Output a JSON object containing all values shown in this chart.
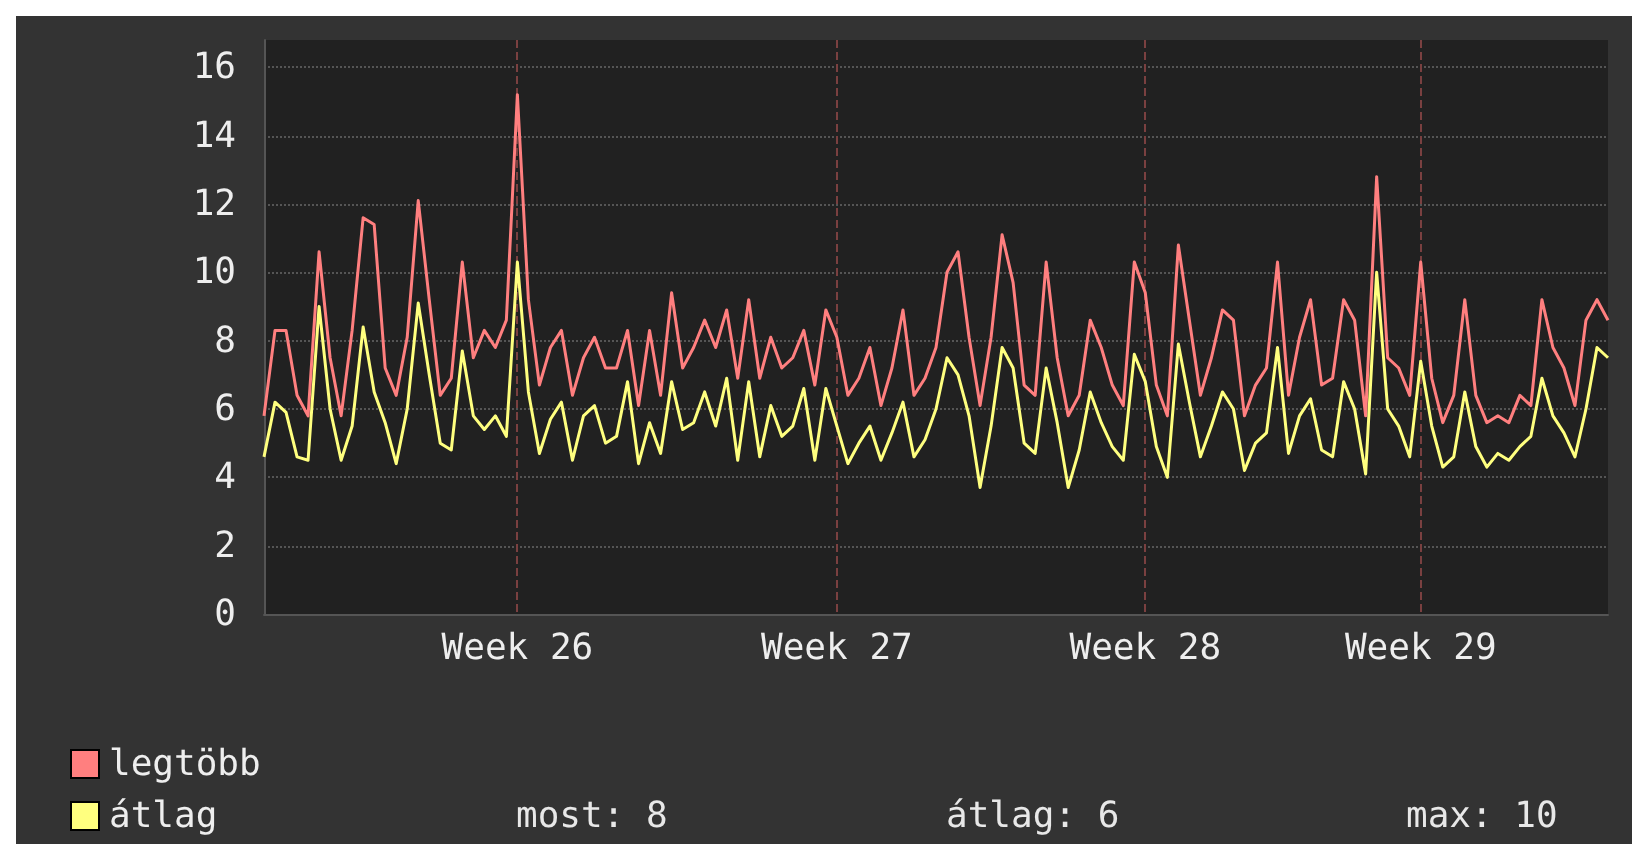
{
  "chart_data": {
    "type": "line",
    "categories": [
      null,
      null,
      null,
      null,
      null,
      null,
      null,
      null,
      null,
      null,
      null,
      null,
      null,
      null,
      null,
      null,
      null,
      null,
      null,
      null,
      null,
      null,
      null,
      "Week 26",
      null,
      null,
      null,
      null,
      null,
      null,
      null,
      null,
      null,
      null,
      null,
      null,
      null,
      null,
      null,
      null,
      null,
      null,
      null,
      null,
      null,
      null,
      null,
      null,
      null,
      null,
      null,
      null,
      "Week 27",
      null,
      null,
      null,
      null,
      null,
      null,
      null,
      null,
      null,
      null,
      null,
      null,
      null,
      null,
      null,
      null,
      null,
      null,
      null,
      null,
      null,
      null,
      null,
      null,
      null,
      null,
      null,
      "Week 28",
      null,
      null,
      null,
      null,
      null,
      null,
      null,
      null,
      null,
      null,
      null,
      null,
      null,
      null,
      null,
      null,
      null,
      null,
      null,
      null,
      null,
      null,
      null,
      null,
      "Week 29",
      null,
      null,
      null,
      null,
      null,
      null,
      null,
      null,
      null,
      null,
      null,
      null,
      null,
      null,
      null,
      null,
      null
    ],
    "series": [
      {
        "name": "legtöbb",
        "color": "#ff7f7f",
        "values": [
          5.8,
          8.3,
          8.3,
          6.4,
          5.8,
          10.6,
          7.5,
          5.8,
          8.3,
          11.6,
          11.4,
          7.2,
          6.4,
          8.1,
          12.1,
          9.2,
          6.4,
          6.9,
          10.3,
          7.5,
          8.3,
          7.8,
          8.6,
          15.2,
          9.2,
          6.7,
          7.8,
          8.3,
          6.4,
          7.5,
          8.1,
          7.2,
          7.2,
          8.3,
          6.1,
          8.3,
          6.4,
          9.4,
          7.2,
          7.8,
          8.6,
          7.8,
          8.9,
          6.9,
          9.2,
          6.9,
          8.1,
          7.2,
          7.5,
          8.3,
          6.7,
          8.9,
          8.1,
          6.4,
          6.9,
          7.8,
          6.1,
          7.2,
          8.9,
          6.4,
          6.9,
          7.8,
          10.0,
          10.6,
          8.1,
          6.1,
          8.1,
          11.1,
          9.7,
          6.7,
          6.4,
          10.3,
          7.5,
          5.8,
          6.4,
          8.6,
          7.8,
          6.7,
          6.1,
          10.3,
          9.4,
          6.7,
          5.8,
          10.8,
          8.6,
          6.4,
          7.5,
          8.9,
          8.6,
          5.8,
          6.7,
          7.2,
          10.3,
          6.4,
          8.1,
          9.2,
          6.7,
          6.9,
          9.2,
          8.6,
          5.8,
          12.8,
          7.5,
          7.2,
          6.4,
          10.3,
          6.9,
          5.6,
          6.4,
          9.2,
          6.4,
          5.6,
          5.8,
          5.6,
          6.4,
          6.1,
          9.2,
          7.8,
          7.2,
          6.1,
          8.6,
          9.2,
          8.6
        ]
      },
      {
        "name": "átlag",
        "color": "#ffff7f",
        "values": [
          4.6,
          6.2,
          5.9,
          4.6,
          4.5,
          9.0,
          6.0,
          4.5,
          5.5,
          8.4,
          6.5,
          5.6,
          4.4,
          6.0,
          9.1,
          7.0,
          5.0,
          4.8,
          7.7,
          5.8,
          5.4,
          5.8,
          5.2,
          10.3,
          6.5,
          4.7,
          5.7,
          6.2,
          4.5,
          5.8,
          6.1,
          5.0,
          5.2,
          6.8,
          4.4,
          5.6,
          4.7,
          6.8,
          5.4,
          5.6,
          6.5,
          5.5,
          6.9,
          4.5,
          6.8,
          4.6,
          6.1,
          5.2,
          5.5,
          6.6,
          4.5,
          6.6,
          5.5,
          4.4,
          5.0,
          5.5,
          4.5,
          5.3,
          6.2,
          4.6,
          5.1,
          6.0,
          7.5,
          7.0,
          5.8,
          3.7,
          5.5,
          7.8,
          7.2,
          5.0,
          4.7,
          7.2,
          5.6,
          3.7,
          4.8,
          6.5,
          5.6,
          4.9,
          4.5,
          7.6,
          6.8,
          4.9,
          4.0,
          7.9,
          6.2,
          4.6,
          5.5,
          6.5,
          6.0,
          4.2,
          5.0,
          5.3,
          7.8,
          4.7,
          5.8,
          6.3,
          4.8,
          4.6,
          6.8,
          6.0,
          4.1,
          10.0,
          6.0,
          5.5,
          4.6,
          7.4,
          5.5,
          4.3,
          4.6,
          6.5,
          4.9,
          4.3,
          4.7,
          4.5,
          4.9,
          5.2,
          6.9,
          5.8,
          5.3,
          4.6,
          6.0,
          7.8,
          7.5
        ]
      }
    ],
    "ylim": [
      0,
      16.8
    ],
    "yticks": [
      0,
      2,
      4,
      6,
      8,
      10,
      12,
      14,
      16
    ],
    "grid": true,
    "legend": "bottom left",
    "annotations": [
      "most: 8",
      "átlag: 6",
      "max: 10"
    ]
  }
}
